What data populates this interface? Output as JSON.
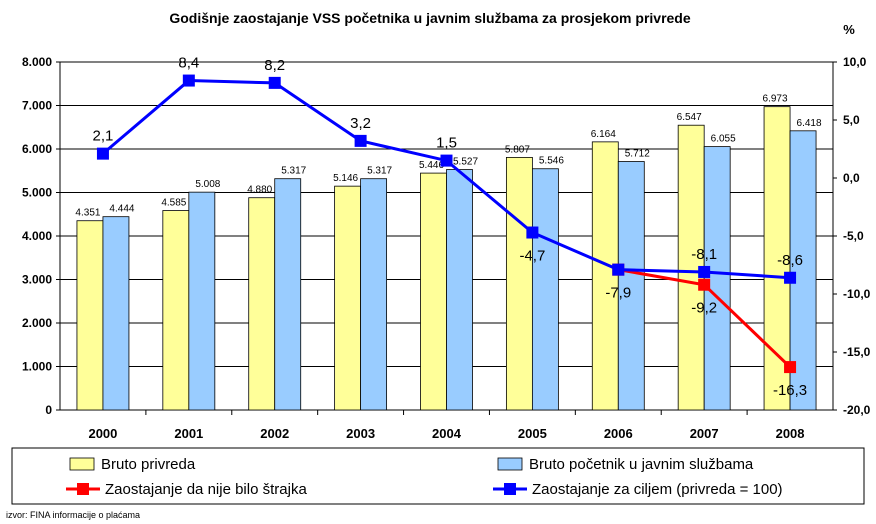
{
  "chart_data": {
    "type": "bar",
    "title": "Godišnje zaostajanje VSS početnika u javnim službama za prosjekom privrede",
    "right_unit": "%",
    "source": "izvor: FINA informacije o plaćama",
    "categories": [
      "2000",
      "2001",
      "2002",
      "2003",
      "2004",
      "2005",
      "2006",
      "2007",
      "2008"
    ],
    "left_axis": {
      "min": 0,
      "max": 8000,
      "step": 1000,
      "ticks": [
        "0",
        "1.000",
        "2.000",
        "3.000",
        "4.000",
        "5.000",
        "6.000",
        "7.000",
        "8.000"
      ]
    },
    "right_axis": {
      "min": -20,
      "max": 10,
      "step": 5,
      "ticks": [
        "-20,0",
        "-15,0",
        "-10,0",
        "-5,0",
        "0,0",
        "5,0",
        "10,0"
      ]
    },
    "bar_series": [
      {
        "name": "Bruto privreda",
        "color": "#ffff99",
        "values": [
          4351,
          4585,
          4880,
          5146,
          5446,
          5807,
          6164,
          6547,
          6973
        ],
        "labels": [
          "4.351",
          "4.585",
          "4.880",
          "5.146",
          "5.446",
          "5.807",
          "6.164",
          "6.547",
          "6.973"
        ]
      },
      {
        "name": "Bruto početnik u javnim službama",
        "color": "#99ccff",
        "values": [
          4444,
          5008,
          5317,
          5317,
          5527,
          5546,
          5712,
          6055,
          6418
        ],
        "labels": [
          "4.444",
          "5.008",
          "5.317",
          "5.317",
          "5.527",
          "5.546",
          "5.712",
          "6.055",
          "6.418"
        ]
      }
    ],
    "line_series": [
      {
        "name": "Zaostajanje da nije bilo štrajka",
        "color": "#ff0000",
        "values": [
          null,
          null,
          null,
          null,
          null,
          null,
          -7.9,
          -9.2,
          -16.3
        ],
        "labels": [
          "",
          "",
          "",
          "",
          "",
          "",
          "",
          "-9,2",
          "-16,3"
        ]
      },
      {
        "name": "Zaostajanje za ciljem (privreda = 100)",
        "color": "#0000ff",
        "values": [
          2.1,
          8.4,
          8.2,
          3.2,
          1.5,
          -4.7,
          -7.9,
          -8.1,
          -8.6
        ],
        "labels": [
          "2,1",
          "8,4",
          "8,2",
          "3,2",
          "1,5",
          "-4,7",
          "-7,9",
          "-8,1",
          "-8,6"
        ]
      }
    ],
    "legend": {
      "placement": "bottom",
      "items": [
        "Bruto privreda",
        "Bruto početnik u javnim službama",
        "Zaostajanje da nije bilo štrajka",
        "Zaostajanje za ciljem (privreda = 100)"
      ]
    }
  }
}
